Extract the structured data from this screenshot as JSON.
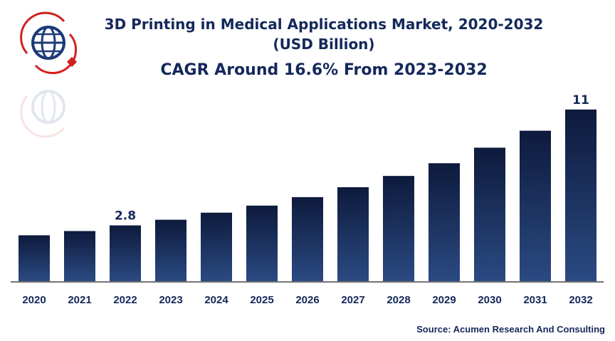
{
  "chart_data": {
    "type": "bar",
    "title": "3D Printing in Medical Applications Market, 2020-2032",
    "subtitle": "(USD Billion)",
    "annotation": "CAGR Around 16.6% From 2023-2032",
    "categories": [
      "2020",
      "2021",
      "2022",
      "2023",
      "2024",
      "2025",
      "2026",
      "2027",
      "2028",
      "2029",
      "2030",
      "2031",
      "2032"
    ],
    "values": [
      2.1,
      2.4,
      2.8,
      3.2,
      3.7,
      4.2,
      4.8,
      5.5,
      6.3,
      7.2,
      8.3,
      9.5,
      11
    ],
    "data_labels": {
      "2022": "2.8",
      "2032": "11"
    },
    "xlabel": "",
    "ylabel": "",
    "ylim": [
      -1.15,
      12
    ],
    "grid": false,
    "bar_color_top": "#0d1a3c",
    "bar_color_bottom": "#2b4a82"
  },
  "source": "Source: Acumen Research And Consulting"
}
